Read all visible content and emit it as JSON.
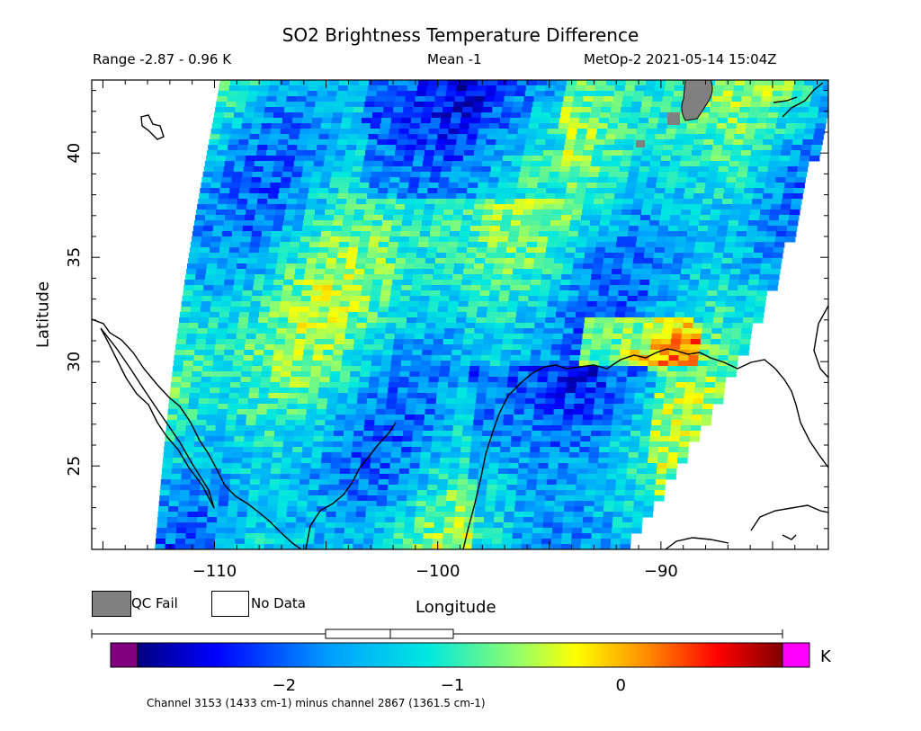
{
  "title": "SO2 Brightness Temperature Difference",
  "stats": {
    "range": "Range -2.87 - 0.96 K",
    "mean": "Mean -1",
    "satellite_time": "MetOp-2 2021-05-14 15:04Z"
  },
  "axes": {
    "ylabel": "Latitude",
    "xlabel": "Longitude",
    "lat_ticks": [
      "25",
      "30",
      "35",
      "40"
    ],
    "lon_ticks": [
      "-110",
      "-100",
      "-90"
    ],
    "lon_range": [
      -115.5,
      -82.5
    ],
    "lat_range": [
      21,
      43.5
    ]
  },
  "legend": {
    "qc_fail": "QC Fail",
    "no_data": "No Data",
    "qc_color": "#808080"
  },
  "colorbar": {
    "unit": "K",
    "range": [
      -2.87,
      0.96
    ],
    "tick_labels": [
      "-2",
      "-1",
      "0"
    ],
    "tick_values": [
      -2,
      -1,
      0
    ],
    "underflow_color": "#800080",
    "overflow_color": "#ff00ff",
    "caption": "Channel 3153 (1433 cm-1) minus channel 2867 (1361.5 cm-1)",
    "box_whisker": {
      "min": -2.87,
      "q1": -1.3,
      "median": -1.0,
      "q3": -0.7,
      "max": 0.96
    }
  }
}
